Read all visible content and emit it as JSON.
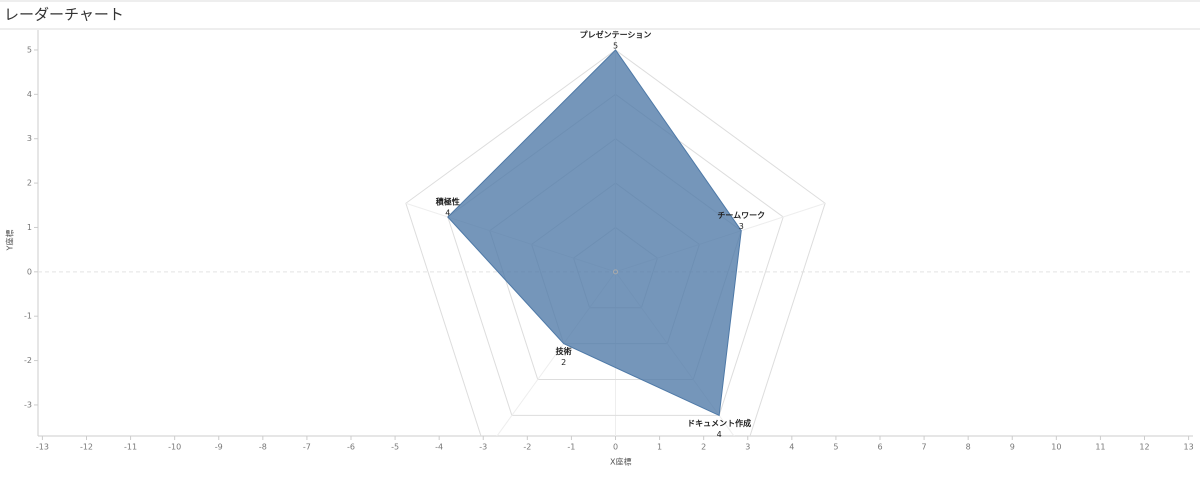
{
  "chart_data": {
    "type": "radar",
    "title": "レーダーチャート",
    "x_label": "X座標",
    "y_label": "Y座標",
    "categories": [
      "プレゼンテーション",
      "チームワーク",
      "ドキュメント作成",
      "技術",
      "積極性"
    ],
    "values": [
      5,
      3,
      4,
      2,
      4
    ],
    "color": "#4e79a7",
    "rings": [
      1,
      2,
      3,
      4,
      5
    ],
    "xlim": [
      -13.1,
      13.1
    ],
    "ylim": [
      -3.7,
      5.45
    ],
    "xticks": [
      -13,
      -12,
      -11,
      -10,
      -9,
      -8,
      -7,
      -6,
      -5,
      -4,
      -3,
      -2,
      -1,
      0,
      1,
      2,
      3,
      4,
      5,
      6,
      7,
      8,
      9,
      10,
      11,
      12,
      13
    ],
    "yticks": [
      -3,
      -2,
      -1,
      0,
      1,
      2,
      3,
      4,
      5
    ]
  }
}
